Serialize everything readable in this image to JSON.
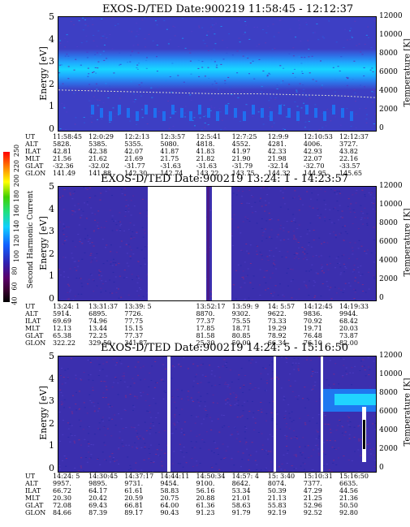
{
  "panels": [
    {
      "title": "EXOS-D/TED   Date:900219   11:58:45 - 12:12:37",
      "rows": [
        [
          "UT",
          "11:58:45",
          "12:0:29",
          "12:2:13",
          "12:3:57",
          "12:5:41",
          "12:7:25",
          "12:9:9",
          "12:10:53",
          "12:12:37"
        ],
        [
          "ALT",
          "5828.",
          "5385.",
          "5355.",
          "5080.",
          "4818.",
          "4552.",
          "4281.",
          "4006.",
          "3727."
        ],
        [
          "ILAT",
          "42.81",
          "42.38",
          "42.07",
          "41.87",
          "41.83",
          "41.97",
          "42.33",
          "42.93",
          "43.82"
        ],
        [
          "MLT",
          "21.56",
          "21.62",
          "21.69",
          "21.75",
          "21.82",
          "21.90",
          "21.98",
          "22.07",
          "22.16"
        ],
        [
          "GLAT",
          "-32.36",
          "-32.02",
          "-31.77",
          "-31.63",
          "-31.63",
          "-31.79",
          "-32.14",
          "-32.70",
          "-33.57"
        ],
        [
          "GLON",
          "141.49",
          "141.88",
          "142.30",
          "142.74",
          "143.22",
          "143.75",
          "144.32",
          "144.95",
          "145.65"
        ]
      ]
    },
    {
      "title": "EXOS-D/TED   Date:900219   13:24: 1 - 14:23:57",
      "rows": [
        [
          "UT",
          "13:24: 1",
          "13:31:37",
          "13:39: 5",
          "",
          "13:52:17",
          "13:59: 9",
          "14: 5:57",
          "14:12:45",
          "14:19:33"
        ],
        [
          "ALT",
          "5914.",
          "6895.",
          "7726.",
          "",
          "8870.",
          "9302.",
          "9622.",
          "9836.",
          "9944."
        ],
        [
          "ILAT",
          "69.69",
          "74.96",
          "77.75",
          "",
          "77.37",
          "75.55",
          "73.33",
          "70.92",
          "68.42"
        ],
        [
          "MLT",
          "12.13",
          "13.44",
          "15.15",
          "",
          "17.85",
          "18.71",
          "19.29",
          "19.71",
          "20.03"
        ],
        [
          "GLAT",
          "65.38",
          "72.25",
          "77.37",
          "",
          "81.58",
          "80.85",
          "78.92",
          "76.48",
          "73.87"
        ],
        [
          "GLON",
          "322.22",
          "329.50",
          "341.87",
          "",
          "25.30",
          "50.00",
          "66.34",
          "76.10",
          "82.00"
        ]
      ]
    },
    {
      "title": "EXOS-D/TED   Date:900219   14:24: 5 - 15:16:50",
      "rows": [
        [
          "UT",
          "14:24: 5",
          "14:30:45",
          "14:37:17",
          "14:44:11",
          "14:50:34",
          "14:57: 4",
          "15: 3:40",
          "15:10:31",
          "15:16:50"
        ],
        [
          "ALT",
          "9957.",
          "9895.",
          "9731.",
          "9454.",
          "9100.",
          "8642.",
          "8074.",
          "7377.",
          "6635."
        ],
        [
          "ILAT",
          "66.72",
          "64.17",
          "61.61",
          "58.83",
          "56.16",
          "53.34",
          "50.39",
          "47.29",
          "44.56"
        ],
        [
          "MLT",
          "20.30",
          "20.42",
          "20.59",
          "20.75",
          "20.88",
          "21.01",
          "21.13",
          "21.25",
          "21.36"
        ],
        [
          "GLAT",
          "72.08",
          "69.43",
          "66.81",
          "64.00",
          "61.36",
          "58.63",
          "55.83",
          "52.96",
          "50.50"
        ],
        [
          "GLON",
          "84.66",
          "87.39",
          "89.17",
          "90.43",
          "91.23",
          "91.79",
          "92.19",
          "92.52",
          "92.80"
        ]
      ]
    }
  ],
  "axes": {
    "ylabel_left": "Energy [eV]",
    "ylabel_right": "Temperature [K]",
    "left_ticks": [
      "5",
      "4",
      "3",
      "2",
      "1",
      "0"
    ],
    "right_ticks": [
      "12000",
      "10000",
      "8000",
      "6000",
      "4000",
      "2000",
      "0"
    ]
  },
  "colorbar": {
    "label": "Second Harmonic Current",
    "ticks": [
      "40",
      "60",
      "80",
      "100",
      "120",
      "140",
      "160",
      "180",
      "200",
      "220",
      "250"
    ]
  },
  "chart_data": [
    {
      "type": "heatmap",
      "title": "EXOS-D/TED   Date:900219   11:58:45 - 12:12:37",
      "ylabel": "Energy [eV]",
      "y2label": "Temperature [K]",
      "ylim": [
        0,
        5
      ],
      "y2lim": [
        0,
        12000
      ],
      "x": [
        "11:58:45",
        "12:0:29",
        "12:2:13",
        "12:3:57",
        "12:5:41",
        "12:7:25",
        "12:9:9",
        "12:10:53",
        "12:12:37"
      ],
      "bands": [
        {
          "energy_range": [
            1.9,
            3.2
          ],
          "level": "high"
        },
        {
          "energy_range": [
            2.3,
            2.8
          ],
          "level": "peak"
        }
      ],
      "temperature_trace": [
        4300,
        4200,
        4100,
        4000,
        3900,
        3900,
        3800,
        3700,
        3500
      ]
    },
    {
      "type": "heatmap",
      "title": "EXOS-D/TED   Date:900219   13:24: 1 - 14:23:57",
      "ylabel": "Energy [eV]",
      "y2label": "Temperature [K]",
      "ylim": [
        0,
        5
      ],
      "y2lim": [
        0,
        12000
      ],
      "x": [
        "13:24: 1",
        "13:31:37",
        "13:39: 5",
        "13:52:17",
        "13:59: 9",
        "14: 5:57",
        "14:12:45",
        "14:19:33"
      ],
      "data_gaps": [
        [
          "13:39: 5",
          "13:52:17"
        ]
      ]
    },
    {
      "type": "heatmap",
      "title": "EXOS-D/TED   Date:900219   14:24: 5 - 15:16:50",
      "ylabel": "Energy [eV]",
      "y2label": "Temperature [K]",
      "ylim": [
        0,
        5
      ],
      "y2lim": [
        0,
        12000
      ],
      "x": [
        "14:24: 5",
        "14:30:45",
        "14:37:17",
        "14:44:11",
        "14:50:34",
        "14:57: 4",
        "15: 3:40",
        "15:10:31",
        "15:16:50"
      ]
    }
  ]
}
